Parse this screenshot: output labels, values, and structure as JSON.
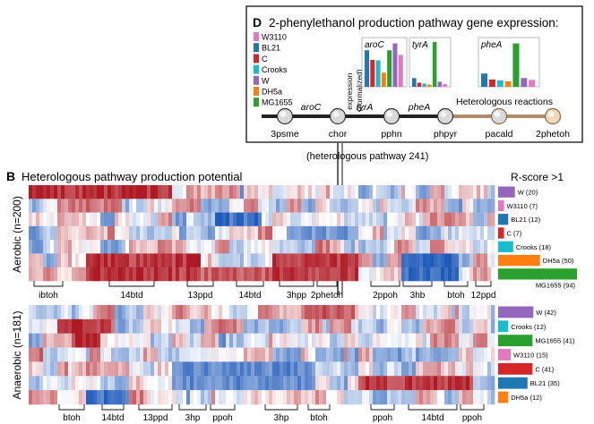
{
  "panel_d": {
    "letter": "D",
    "title": "2-phenylethanol production pathway gene expression:",
    "strains": [
      {
        "name": "W3110",
        "color": "#e377c2"
      },
      {
        "name": "BL21",
        "color": "#1f77b4"
      },
      {
        "name": "C",
        "color": "#d62728"
      },
      {
        "name": "Crooks",
        "color": "#17becf"
      },
      {
        "name": "W",
        "color": "#9467bd"
      },
      {
        "name": "DH5a",
        "color": "#ff7f0e"
      },
      {
        "name": "MG1655",
        "color": "#2ca02c"
      }
    ],
    "expression_axis_label": "expression\n(normalized)",
    "genes": [
      {
        "name": "aroC",
        "values": [
          0.0,
          0.8,
          0.59,
          0.58,
          0.31,
          0.8,
          0.95,
          0.7
        ]
      },
      {
        "name": "tyrA",
        "values": [
          0.0,
          0.19,
          0.09,
          0.07,
          0.05,
          0.98,
          0.11,
          0.06
        ]
      },
      {
        "name": "pheA",
        "values": [
          0.0,
          0.29,
          0.16,
          0.14,
          0.12,
          0.95,
          0.19,
          0.15
        ]
      }
    ],
    "pathway_nodes": [
      "3psme",
      "chor",
      "pphn",
      "phpyr",
      "pacald",
      "2phetoh"
    ],
    "enzyme_labels": [
      "aroC",
      "tyrA",
      "pheA"
    ],
    "heterologous_label": "Heterologous reactions",
    "pathway_caption": "(heterologous pathway 241)"
  },
  "panel_b": {
    "letter": "B",
    "title": "Heterologous pathway production potential",
    "rscore_label": "R-score >1",
    "aerobic": {
      "row_label": "Aerobic (n=200)",
      "bars": [
        {
          "label": "W (20)",
          "value": 20,
          "color": "#9467bd"
        },
        {
          "label": "W3110 (7)",
          "value": 7,
          "color": "#e377c2"
        },
        {
          "label": "BL21 (12)",
          "value": 12,
          "color": "#1f77b4"
        },
        {
          "label": "C (7)",
          "value": 7,
          "color": "#d62728"
        },
        {
          "label": "Crooks (18)",
          "value": 18,
          "color": "#17becf"
        },
        {
          "label": "DH5a (50)",
          "value": 50,
          "color": "#ff7f0e"
        },
        {
          "label": "MG1655 (94)",
          "value": 94,
          "color": "#2ca02c"
        }
      ],
      "clusters": [
        "ibtoh",
        "14btd",
        "13ppd",
        "14btd",
        "3hpp",
        "2phetoh",
        "2ppoh",
        "3hb",
        "btoh",
        "12ppd"
      ]
    },
    "anaerobic": {
      "row_label": "Anaerobic (n=181)",
      "bars": [
        {
          "label": "W (42)",
          "value": 42,
          "color": "#9467bd"
        },
        {
          "label": "Crooks (12)",
          "value": 12,
          "color": "#17becf"
        },
        {
          "label": "MG1655 (41)",
          "value": 41,
          "color": "#2ca02c"
        },
        {
          "label": "W3110 (15)",
          "value": 15,
          "color": "#e377c2"
        },
        {
          "label": "C (41)",
          "value": 41,
          "color": "#d62728"
        },
        {
          "label": "BL21 (35)",
          "value": 35,
          "color": "#1f77b4"
        },
        {
          "label": "DH5a (12)",
          "value": 12,
          "color": "#ff7f0e"
        }
      ],
      "clusters": [
        "btoh",
        "14btd",
        "13ppd",
        "3hp",
        "ppoh",
        "3hp",
        "btoh",
        "ppoh",
        "14btd",
        "ppoh"
      ]
    }
  }
}
